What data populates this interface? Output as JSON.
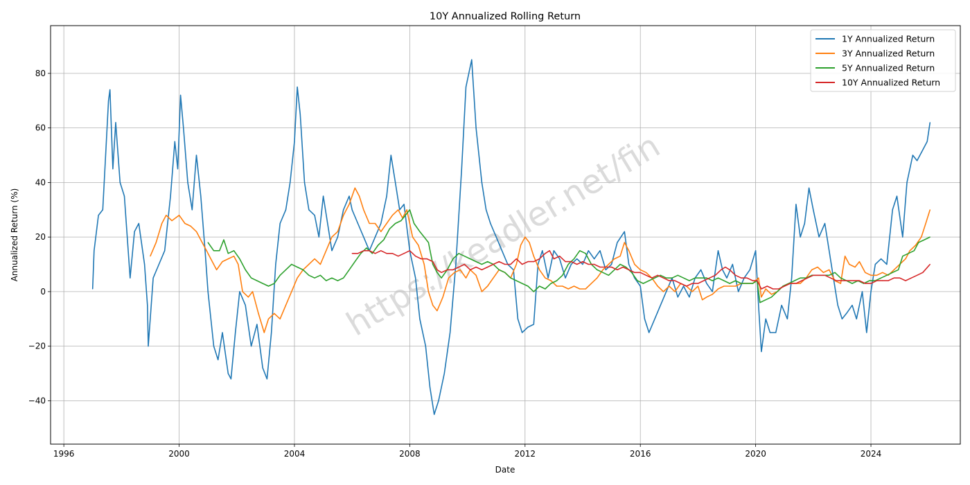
{
  "chart_data": {
    "type": "line",
    "title": "10Y Annualized Rolling Return",
    "xlabel": "Date",
    "ylabel": "Annualized Return (%)",
    "xlim": [
      1995.54,
      2027.1
    ],
    "ylim": [
      -55.9,
      97.5
    ],
    "x_ticks": [
      1996,
      2000,
      2004,
      2008,
      2012,
      2016,
      2020,
      2024
    ],
    "x_tick_labels": [
      "1996",
      "2000",
      "2004",
      "2008",
      "2012",
      "2016",
      "2020",
      "2024"
    ],
    "y_ticks": [
      -40,
      -20,
      0,
      20,
      40,
      60,
      80
    ],
    "y_tick_labels": [
      "−40",
      "−20",
      "0",
      "20",
      "40",
      "60",
      "80"
    ],
    "grid": true,
    "legend_position": "top-right",
    "watermark": "https://keadler.net/fin",
    "series": [
      {
        "name": "1Y Annualized Return",
        "color": "#1f77b4",
        "x": [
          1997.0,
          1997.05,
          1997.2,
          1997.35,
          1997.55,
          1997.6,
          1997.7,
          1997.8,
          1997.95,
          1998.1,
          1998.3,
          1998.45,
          1998.6,
          1998.8,
          1998.9,
          1998.93,
          1999.1,
          1999.3,
          1999.5,
          1999.7,
          1999.85,
          1999.95,
          2000.05,
          2000.15,
          2000.3,
          2000.45,
          2000.6,
          2000.75,
          2000.9,
          2001.0,
          2001.2,
          2001.35,
          2001.5,
          2001.7,
          2001.8,
          2001.95,
          2002.1,
          2002.3,
          2002.5,
          2002.7,
          2002.9,
          2003.05,
          2003.2,
          2003.35,
          2003.5,
          2003.7,
          2003.85,
          2004.0,
          2004.1,
          2004.2,
          2004.35,
          2004.5,
          2004.7,
          2004.85,
          2005.0,
          2005.15,
          2005.3,
          2005.5,
          2005.7,
          2005.9,
          2006.0,
          2006.2,
          2006.4,
          2006.6,
          2006.8,
          2007.0,
          2007.2,
          2007.35,
          2007.5,
          2007.65,
          2007.8,
          2008.0,
          2008.2,
          2008.35,
          2008.55,
          2008.7,
          2008.85,
          2009.0,
          2009.2,
          2009.4,
          2009.6,
          2009.8,
          2009.95,
          2010.15,
          2010.3,
          2010.5,
          2010.65,
          2010.8,
          2011.0,
          2011.2,
          2011.4,
          2011.6,
          2011.75,
          2011.9,
          2012.1,
          2012.3,
          2012.45,
          2012.6,
          2012.8,
          2013.0,
          2013.2,
          2013.4,
          2013.6,
          2013.8,
          2014.0,
          2014.2,
          2014.4,
          2014.6,
          2014.8,
          2015.0,
          2015.2,
          2015.45,
          2015.6,
          2015.8,
          2016.0,
          2016.15,
          2016.3,
          2016.5,
          2016.7,
          2016.9,
          2017.1,
          2017.3,
          2017.5,
          2017.7,
          2017.9,
          2018.1,
          2018.3,
          2018.5,
          2018.7,
          2018.85,
          2019.0,
          2019.2,
          2019.4,
          2019.6,
          2019.8,
          2020.0,
          2020.1,
          2020.2,
          2020.35,
          2020.5,
          2020.7,
          2020.9,
          2021.1,
          2021.25,
          2021.4,
          2021.55,
          2021.7,
          2021.85,
          2022.0,
          2022.2,
          2022.4,
          2022.55,
          2022.7,
          2022.85,
          2023.0,
          2023.15,
          2023.35,
          2023.5,
          2023.7,
          2023.85,
          2024.0,
          2024.15,
          2024.35,
          2024.55,
          2024.75,
          2024.9,
          2025.1,
          2025.25,
          2025.45,
          2025.6,
          2025.8,
          2025.95,
          2026.05
        ],
        "y": [
          1,
          15,
          28,
          30,
          70,
          74,
          45,
          62,
          40,
          35,
          5,
          22,
          25,
          10,
          -5,
          -20,
          5,
          10,
          15,
          35,
          55,
          45,
          72,
          60,
          40,
          30,
          50,
          35,
          15,
          0,
          -20,
          -25,
          -15,
          -30,
          -32,
          -15,
          0,
          -5,
          -20,
          -12,
          -28,
          -32,
          -15,
          10,
          25,
          30,
          40,
          55,
          75,
          65,
          40,
          30,
          28,
          20,
          35,
          25,
          15,
          20,
          30,
          35,
          30,
          25,
          20,
          15,
          20,
          25,
          35,
          50,
          40,
          30,
          32,
          15,
          5,
          -10,
          -20,
          -35,
          -45,
          -40,
          -30,
          -15,
          10,
          45,
          75,
          85,
          60,
          40,
          30,
          25,
          20,
          15,
          10,
          8,
          -10,
          -15,
          -13,
          -12,
          10,
          15,
          5,
          15,
          12,
          5,
          10,
          12,
          10,
          15,
          12,
          15,
          8,
          10,
          18,
          22,
          10,
          5,
          2,
          -10,
          -15,
          -10,
          -5,
          0,
          5,
          -2,
          2,
          -2,
          5,
          8,
          3,
          0,
          15,
          8,
          5,
          10,
          0,
          5,
          8,
          15,
          -5,
          -22,
          -10,
          -15,
          -15,
          -5,
          -10,
          5,
          32,
          20,
          25,
          38,
          30,
          20,
          25,
          15,
          5,
          -5,
          -10,
          -8,
          -5,
          -10,
          0,
          -15,
          0,
          10,
          12,
          10,
          30,
          35,
          20,
          40,
          50,
          48,
          52,
          55,
          62
        ]
      },
      {
        "name": "3Y Annualized Return",
        "color": "#ff7f0e",
        "x": [
          1999.0,
          1999.2,
          1999.4,
          1999.55,
          1999.75,
          2000.0,
          2000.2,
          2000.4,
          2000.6,
          2000.8,
          2000.95,
          2001.1,
          2001.3,
          2001.5,
          2001.7,
          2001.9,
          2002.05,
          2002.2,
          2002.4,
          2002.55,
          2002.75,
          2002.95,
          2003.1,
          2003.3,
          2003.5,
          2003.7,
          2003.9,
          2004.1,
          2004.3,
          2004.5,
          2004.7,
          2004.9,
          2005.1,
          2005.3,
          2005.5,
          2005.7,
          2005.9,
          2006.1,
          2006.25,
          2006.4,
          2006.6,
          2006.8,
          2007.0,
          2007.2,
          2007.4,
          2007.6,
          2007.75,
          2007.9,
          2008.1,
          2008.3,
          2008.5,
          2008.65,
          2008.8,
          2008.95,
          2009.15,
          2009.35,
          2009.55,
          2009.75,
          2009.95,
          2010.1,
          2010.3,
          2010.5,
          2010.7,
          2010.9,
          2011.1,
          2011.3,
          2011.5,
          2011.7,
          2011.85,
          2012.0,
          2012.15,
          2012.3,
          2012.5,
          2012.7,
          2012.9,
          2013.1,
          2013.3,
          2013.5,
          2013.7,
          2013.9,
          2014.1,
          2014.3,
          2014.5,
          2014.7,
          2014.9,
          2015.1,
          2015.3,
          2015.45,
          2015.6,
          2015.8,
          2016.0,
          2016.2,
          2016.4,
          2016.6,
          2016.8,
          2017.0,
          2017.2,
          2017.4,
          2017.6,
          2017.8,
          2018.0,
          2018.15,
          2018.3,
          2018.5,
          2018.7,
          2018.9,
          2019.1,
          2019.3,
          2019.5,
          2019.7,
          2019.9,
          2020.1,
          2020.2,
          2020.35,
          2020.55,
          2020.75,
          2020.95,
          2021.15,
          2021.35,
          2021.55,
          2021.75,
          2021.95,
          2022.15,
          2022.35,
          2022.55,
          2022.75,
          2022.95,
          2023.1,
          2023.25,
          2023.45,
          2023.6,
          2023.8,
          2024.0,
          2024.2,
          2024.4,
          2024.6,
          2024.8,
          2025.0,
          2025.2,
          2025.35,
          2025.55,
          2025.75,
          2025.9,
          2026.05
        ],
        "y": [
          13,
          18,
          25,
          28,
          26,
          28,
          25,
          24,
          22,
          18,
          15,
          12,
          8,
          11,
          12,
          13,
          10,
          0,
          -2,
          0,
          -8,
          -15,
          -10,
          -8,
          -10,
          -5,
          0,
          5,
          8,
          10,
          12,
          10,
          15,
          20,
          22,
          28,
          32,
          38,
          35,
          30,
          25,
          25,
          22,
          25,
          28,
          30,
          27,
          30,
          20,
          17,
          10,
          0,
          -5,
          -7,
          -2,
          5,
          7,
          8,
          5,
          8,
          6,
          0,
          2,
          5,
          8,
          7,
          5,
          10,
          17,
          20,
          18,
          13,
          8,
          5,
          4,
          2,
          2,
          1,
          2,
          1,
          1,
          3,
          5,
          8,
          10,
          12,
          13,
          18,
          15,
          10,
          8,
          7,
          5,
          2,
          0,
          2,
          0,
          3,
          2,
          0,
          2,
          -3,
          -2,
          -1,
          1,
          2,
          2,
          2,
          3,
          3,
          3,
          5,
          -2,
          1,
          -1,
          0,
          2,
          3,
          3,
          3,
          5,
          8,
          9,
          7,
          8,
          4,
          3,
          13,
          10,
          9,
          11,
          7,
          6,
          6,
          7,
          6,
          8,
          10,
          12,
          15,
          17,
          20,
          25,
          30
        ]
      },
      {
        "name": "5Y Annualized Return",
        "color": "#2ca02c",
        "x": [
          2001.0,
          2001.2,
          2001.4,
          2001.55,
          2001.7,
          2001.9,
          2002.1,
          2002.3,
          2002.5,
          2002.7,
          2002.9,
          2003.1,
          2003.3,
          2003.5,
          2003.7,
          2003.9,
          2004.1,
          2004.3,
          2004.5,
          2004.7,
          2004.9,
          2005.1,
          2005.3,
          2005.5,
          2005.7,
          2005.9,
          2006.1,
          2006.3,
          2006.5,
          2006.7,
          2006.9,
          2007.1,
          2007.3,
          2007.5,
          2007.7,
          2007.85,
          2008.0,
          2008.15,
          2008.35,
          2008.5,
          2008.65,
          2008.8,
          2008.95,
          2009.1,
          2009.3,
          2009.5,
          2009.7,
          2009.9,
          2010.1,
          2010.3,
          2010.5,
          2010.7,
          2010.9,
          2011.1,
          2011.3,
          2011.5,
          2011.7,
          2011.9,
          2012.1,
          2012.3,
          2012.5,
          2012.7,
          2012.9,
          2013.1,
          2013.3,
          2013.5,
          2013.7,
          2013.9,
          2014.1,
          2014.3,
          2014.5,
          2014.7,
          2014.9,
          2015.1,
          2015.3,
          2015.5,
          2015.7,
          2015.9,
          2016.1,
          2016.3,
          2016.5,
          2016.7,
          2016.9,
          2017.1,
          2017.3,
          2017.5,
          2017.7,
          2017.9,
          2018.1,
          2018.3,
          2018.5,
          2018.7,
          2018.9,
          2019.1,
          2019.3,
          2019.5,
          2019.7,
          2019.9,
          2020.05,
          2020.15,
          2020.35,
          2020.55,
          2020.75,
          2020.95,
          2021.15,
          2021.35,
          2021.55,
          2021.75,
          2021.95,
          2022.15,
          2022.35,
          2022.55,
          2022.75,
          2022.95,
          2023.15,
          2023.35,
          2023.55,
          2023.75,
          2023.95,
          2024.15,
          2024.35,
          2024.55,
          2024.75,
          2024.95,
          2025.1,
          2025.3,
          2025.5,
          2025.65,
          2025.85,
          2026.05
        ],
        "y": [
          18,
          15,
          15,
          19,
          14,
          15,
          12,
          8,
          5,
          4,
          3,
          2,
          3,
          6,
          8,
          10,
          9,
          8,
          6,
          5,
          6,
          4,
          5,
          4,
          5,
          8,
          11,
          14,
          16,
          14,
          17,
          19,
          23,
          25,
          26,
          28,
          30,
          25,
          22,
          20,
          18,
          10,
          7,
          5,
          8,
          12,
          14,
          13,
          12,
          11,
          10,
          11,
          10,
          8,
          7,
          5,
          4,
          3,
          2,
          0,
          2,
          1,
          3,
          4,
          6,
          10,
          12,
          15,
          14,
          10,
          8,
          7,
          6,
          8,
          10,
          9,
          7,
          4,
          3,
          4,
          5,
          6,
          5,
          5,
          6,
          5,
          4,
          5,
          5,
          5,
          4,
          5,
          4,
          3,
          4,
          3,
          3,
          3,
          4,
          -4,
          -3,
          -2,
          0,
          2,
          3,
          4,
          5,
          5,
          6,
          6,
          6,
          6,
          7,
          5,
          4,
          3,
          4,
          3,
          4,
          4,
          5,
          6,
          7,
          8,
          13,
          14,
          15,
          18,
          19,
          20
        ]
      },
      {
        "name": "10Y Annualized Return",
        "color": "#d62728",
        "x": [
          2006.0,
          2006.2,
          2006.4,
          2006.6,
          2006.8,
          2007.0,
          2007.2,
          2007.4,
          2007.6,
          2007.8,
          2008.0,
          2008.2,
          2008.4,
          2008.6,
          2008.8,
          2008.95,
          2009.1,
          2009.3,
          2009.5,
          2009.7,
          2009.9,
          2010.1,
          2010.3,
          2010.5,
          2010.7,
          2010.9,
          2011.1,
          2011.3,
          2011.5,
          2011.7,
          2011.9,
          2012.1,
          2012.3,
          2012.5,
          2012.7,
          2012.85,
          2013.0,
          2013.2,
          2013.4,
          2013.6,
          2013.8,
          2014.0,
          2014.2,
          2014.4,
          2014.6,
          2014.8,
          2015.0,
          2015.2,
          2015.4,
          2015.6,
          2015.8,
          2016.0,
          2016.2,
          2016.4,
          2016.6,
          2016.8,
          2017.0,
          2017.2,
          2017.4,
          2017.6,
          2017.8,
          2018.0,
          2018.2,
          2018.4,
          2018.6,
          2018.8,
          2018.95,
          2019.1,
          2019.3,
          2019.5,
          2019.7,
          2019.9,
          2020.05,
          2020.2,
          2020.4,
          2020.6,
          2020.8,
          2021.0,
          2021.2,
          2021.4,
          2021.6,
          2021.8,
          2022.0,
          2022.2,
          2022.4,
          2022.6,
          2022.8,
          2023.0,
          2023.2,
          2023.4,
          2023.6,
          2023.8,
          2024.0,
          2024.2,
          2024.4,
          2024.6,
          2024.8,
          2025.0,
          2025.2,
          2025.4,
          2025.6,
          2025.8,
          2026.05
        ],
        "y": [
          14,
          14,
          15,
          15,
          14,
          15,
          14,
          14,
          13,
          14,
          15,
          13,
          12,
          12,
          11,
          8,
          7,
          8,
          8,
          9,
          10,
          8,
          9,
          8,
          9,
          10,
          11,
          10,
          10,
          12,
          10,
          11,
          11,
          12,
          14,
          15,
          12,
          13,
          11,
          11,
          10,
          11,
          10,
          10,
          9,
          9,
          9,
          8,
          9,
          8,
          7,
          7,
          6,
          5,
          6,
          5,
          4,
          4,
          3,
          2,
          3,
          3,
          4,
          5,
          6,
          8,
          9,
          8,
          6,
          5,
          5,
          4,
          4,
          1,
          2,
          1,
          1,
          2,
          3,
          3,
          4,
          5,
          6,
          6,
          6,
          5,
          4,
          4,
          4,
          4,
          4,
          3,
          3,
          4,
          4,
          4,
          5,
          5,
          4,
          5,
          6,
          7,
          10
        ]
      }
    ]
  }
}
